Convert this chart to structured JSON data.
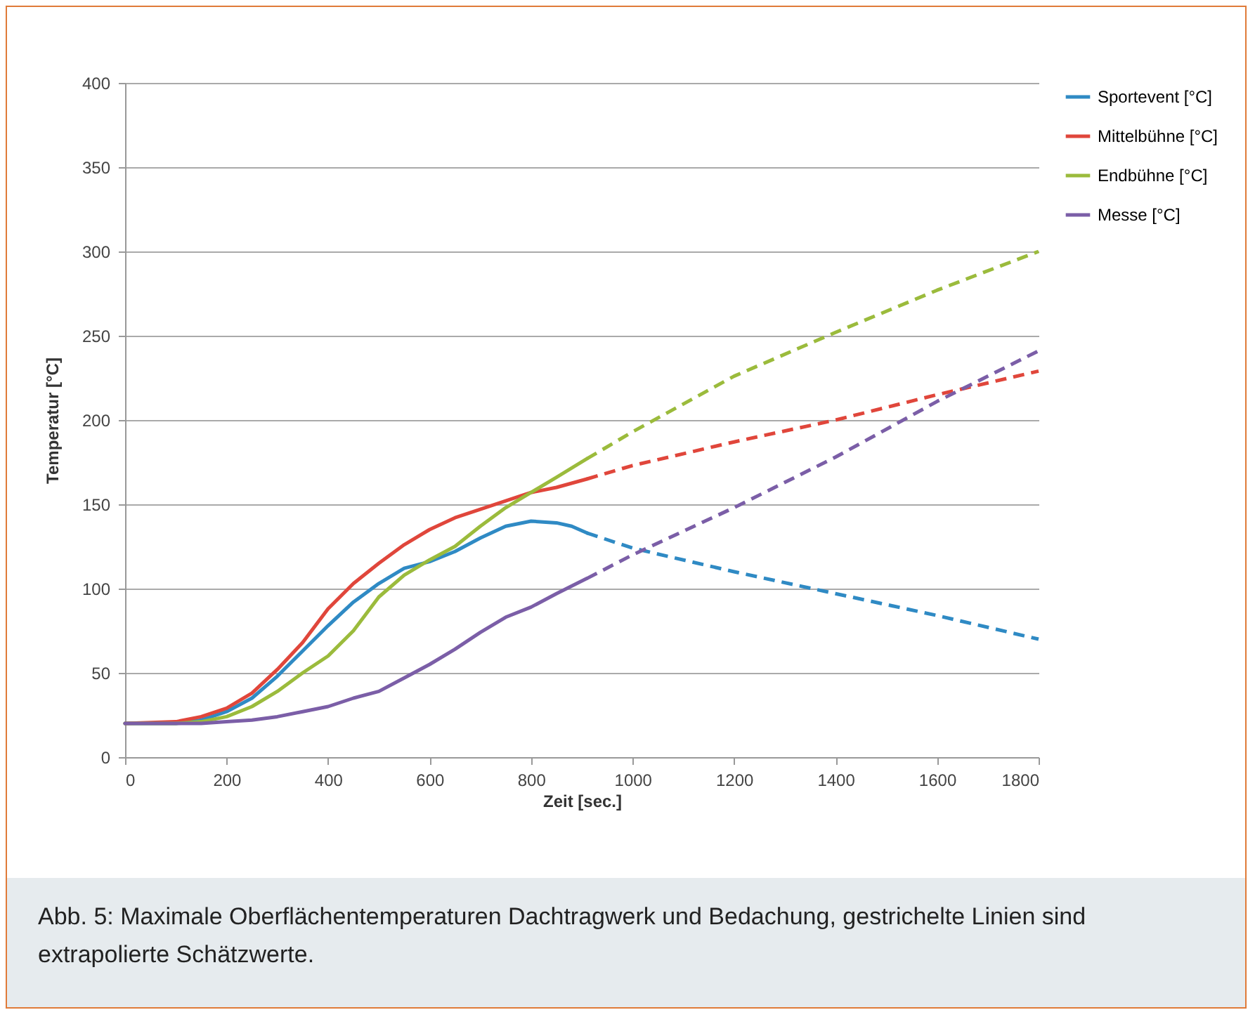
{
  "chart_data": {
    "type": "line",
    "xlabel": "Zeit [sec.]",
    "ylabel": "Temperatur [°C]",
    "annotations": [
      "Abb. 5: Maximale Oberflächentemperaturen Dachtragwerk und Bedachung, gestrichelte Linien sind extrapolierte Schätzwerte."
    ],
    "xlim": [
      0,
      1800
    ],
    "xticks": [
      0,
      200,
      400,
      600,
      800,
      1000,
      1200,
      1400,
      1600,
      1800
    ],
    "ylim": [
      0,
      400
    ],
    "yticks": [
      0,
      50,
      100,
      150,
      200,
      250,
      300,
      350,
      400
    ],
    "grid": "y",
    "legend": "right",
    "line_style": "solid",
    "series": [
      {
        "name": "Sportevent [°C]",
        "color": "#2f8ac4",
        "x": [
          0,
          100,
          150,
          200,
          250,
          300,
          350,
          400,
          450,
          500,
          550,
          600,
          650,
          700,
          750,
          800,
          850,
          880,
          910
        ],
        "values": [
          20,
          20,
          22,
          27,
          35,
          48,
          63,
          78,
          92,
          103,
          112,
          116,
          122,
          130,
          137,
          140,
          139,
          137,
          133
        ]
      },
      {
        "name": "Mittelbühne [°C]",
        "color": "#e0463b",
        "x": [
          0,
          100,
          150,
          200,
          250,
          300,
          350,
          400,
          450,
          500,
          550,
          600,
          650,
          700,
          750,
          800,
          850,
          910
        ],
        "values": [
          20,
          21,
          24,
          29,
          38,
          52,
          68,
          88,
          103,
          115,
          126,
          135,
          142,
          147,
          152,
          157,
          160,
          165
        ]
      },
      {
        "name": "Endbühne [°C]",
        "color": "#9bbb3c",
        "x": [
          0,
          100,
          150,
          200,
          250,
          300,
          350,
          400,
          450,
          500,
          550,
          600,
          650,
          700,
          750,
          800,
          850,
          910
        ],
        "values": [
          20,
          20,
          21,
          24,
          30,
          39,
          50,
          60,
          75,
          95,
          108,
          117,
          125,
          137,
          148,
          157,
          166,
          177
        ]
      },
      {
        "name": "Messe [°C]",
        "color": "#7b5ea7",
        "x": [
          0,
          100,
          150,
          200,
          250,
          300,
          350,
          400,
          450,
          500,
          550,
          600,
          650,
          700,
          750,
          800,
          850,
          910
        ],
        "values": [
          20,
          20,
          20,
          21,
          22,
          24,
          27,
          30,
          35,
          39,
          47,
          55,
          64,
          74,
          83,
          89,
          97,
          106
        ]
      },
      {
        "color": "#2f8ac4",
        "line_style": "dashed",
        "x": [
          910,
          1000,
          1200,
          1400,
          1600,
          1800
        ],
        "values": [
          133,
          124,
          110,
          97,
          84,
          70
        ]
      },
      {
        "color": "#e0463b",
        "line_style": "dashed",
        "x": [
          910,
          1000,
          1200,
          1400,
          1600,
          1800
        ],
        "values": [
          165,
          173,
          187,
          200,
          215,
          229
        ]
      },
      {
        "color": "#9bbb3c",
        "line_style": "dashed",
        "x": [
          910,
          1000,
          1200,
          1400,
          1600,
          1800
        ],
        "values": [
          177,
          193,
          226,
          252,
          277,
          300
        ]
      },
      {
        "color": "#7b5ea7",
        "line_style": "dashed",
        "x": [
          910,
          1000,
          1200,
          1400,
          1600,
          1800
        ],
        "values": [
          106,
          120,
          148,
          178,
          211,
          241
        ]
      }
    ]
  }
}
